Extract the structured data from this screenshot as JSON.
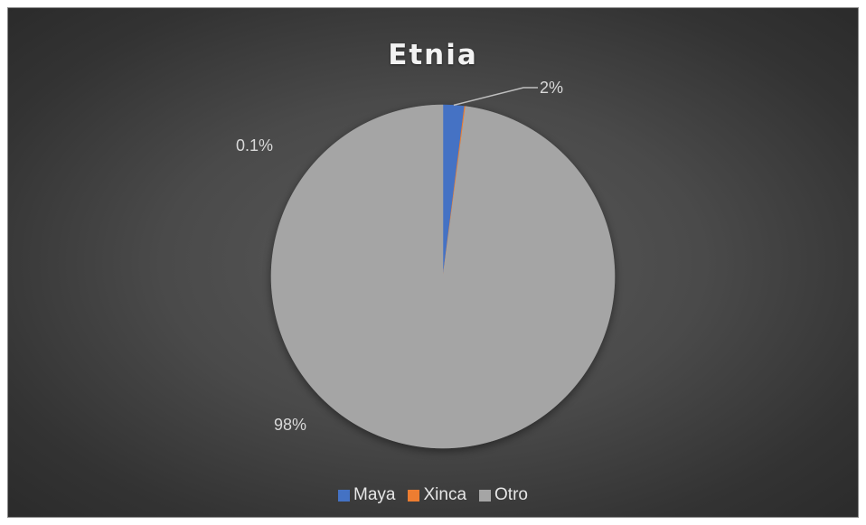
{
  "chart_data": {
    "type": "pie",
    "title": "Etnia",
    "series": [
      {
        "name": "Maya",
        "value": 2,
        "label": "2%",
        "color": "#4472c4"
      },
      {
        "name": "Xinca",
        "value": 0.1,
        "label": "0.1%",
        "color": "#ed7d31"
      },
      {
        "name": "Otro",
        "value": 98,
        "label": "98%",
        "color": "#a5a5a5"
      }
    ],
    "legend_position": "bottom",
    "start_angle": "12 o'clock, clockwise"
  }
}
